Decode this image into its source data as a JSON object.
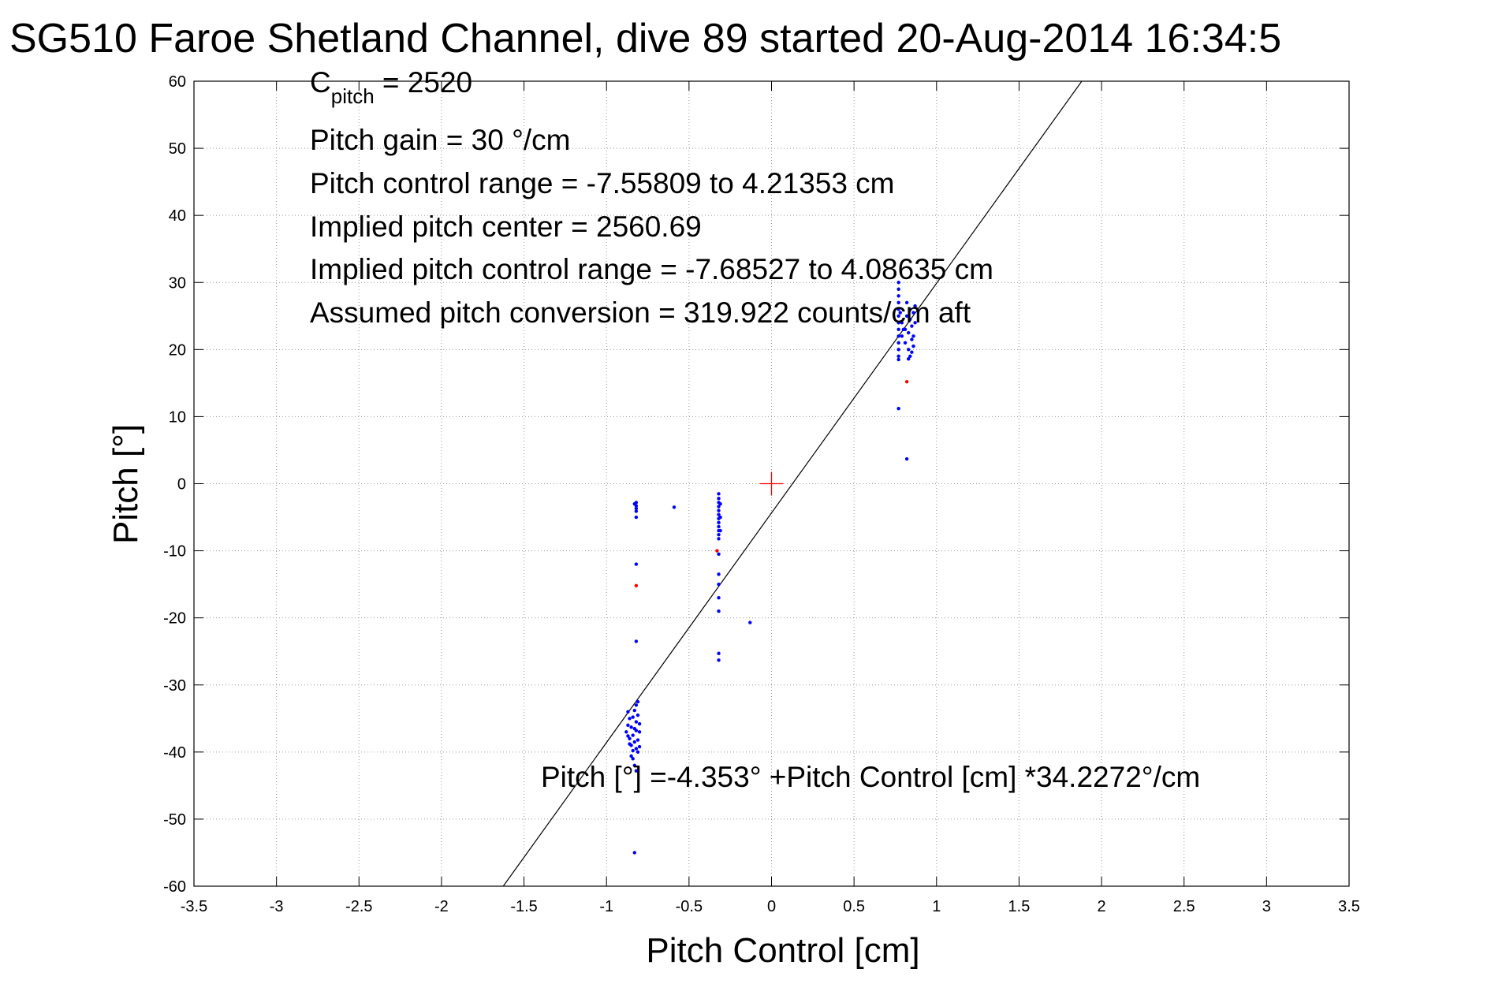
{
  "chart_data": {
    "type": "scatter",
    "title": "SG510 Faroe Shetland Channel, dive 89 started 20-Aug-2014 16:34:5",
    "xlabel": "Pitch Control [cm]",
    "ylabel": "Pitch [°]",
    "xlim": [
      -3.5,
      3.5
    ],
    "ylim": [
      -60,
      60
    ],
    "xticks": [
      -3.5,
      -3,
      -2.5,
      -2,
      -1.5,
      -1,
      -0.5,
      0,
      0.5,
      1,
      1.5,
      2,
      2.5,
      3,
      3.5
    ],
    "xtick_labels": [
      "-3.5",
      "-3",
      "-2.5",
      "-2",
      "-1.5",
      "-1",
      "-0.5",
      "0",
      "0.5",
      "1",
      "1.5",
      "2",
      "2.5",
      "3",
      "3.5"
    ],
    "yticks": [
      -60,
      -50,
      -40,
      -30,
      -20,
      -10,
      0,
      10,
      20,
      30,
      40,
      50,
      60
    ],
    "ytick_labels": [
      "-60",
      "-50",
      "-40",
      "-30",
      "-20",
      "-10",
      "0",
      "10",
      "20",
      "30",
      "40",
      "50",
      "60"
    ],
    "grid": true,
    "annotations": {
      "c_pitch_main": "C",
      "c_pitch_sub": "pitch",
      "c_pitch_value": " = 2520",
      "pitch_gain": "Pitch gain = 30 °/cm",
      "control_range": "Pitch control range = -7.55809 to 4.21353 cm",
      "implied_center": "Implied pitch center = 2560.69",
      "implied_range": "Implied pitch control range = -7.68527 to 4.08635 cm",
      "conversion": "Assumed pitch conversion = 319.922 counts/cm aft",
      "fit_equation": "Pitch [°] =-4.353° +Pitch Control [cm] *34.2272°/cm"
    },
    "fit_line": {
      "intercept": -4.353,
      "slope": 34.2272,
      "color": "#000000"
    },
    "center_marker": {
      "x": 0,
      "y": 0,
      "color": "#ff0000"
    },
    "series": [
      {
        "color": "#0000ff",
        "points": [
          [
            -0.82,
            -2.8
          ],
          [
            -0.82,
            -3.3
          ],
          [
            -0.82,
            -3.7
          ],
          [
            -0.82,
            -4.1
          ],
          [
            -0.82,
            -5.0
          ],
          [
            -0.83,
            -3.0
          ],
          [
            -0.82,
            -12.0
          ],
          [
            -0.82,
            -23.5
          ],
          [
            -0.83,
            -55.0
          ],
          [
            -0.59,
            -3.5
          ],
          [
            -0.32,
            -1.5
          ],
          [
            -0.32,
            -2.2
          ],
          [
            -0.32,
            -2.8
          ],
          [
            -0.32,
            -3.4
          ],
          [
            -0.32,
            -4.0
          ],
          [
            -0.32,
            -4.6
          ],
          [
            -0.32,
            -5.2
          ],
          [
            -0.32,
            -5.8
          ],
          [
            -0.32,
            -6.4
          ],
          [
            -0.32,
            -7.0
          ],
          [
            -0.32,
            -7.6
          ],
          [
            -0.32,
            -8.2
          ],
          [
            -0.31,
            -3.0
          ],
          [
            -0.31,
            -5.0
          ],
          [
            -0.31,
            -7.0
          ],
          [
            -0.32,
            -10.5
          ],
          [
            -0.32,
            -13.5
          ],
          [
            -0.32,
            -15.0
          ],
          [
            -0.32,
            -17.0
          ],
          [
            -0.32,
            -19.0
          ],
          [
            -0.32,
            -25.3
          ],
          [
            -0.32,
            -26.3
          ],
          [
            -0.13,
            -20.7
          ],
          [
            -0.87,
            -34.0
          ],
          [
            -0.86,
            -35.0
          ],
          [
            -0.87,
            -36.0
          ],
          [
            -0.88,
            -37.0
          ],
          [
            -0.86,
            -38.0
          ],
          [
            -0.85,
            -39.0
          ],
          [
            -0.84,
            -37.5
          ],
          [
            -0.83,
            -36.5
          ],
          [
            -0.82,
            -35.5
          ],
          [
            -0.81,
            -34.5
          ],
          [
            -0.82,
            -33.0
          ],
          [
            -0.81,
            -32.5
          ],
          [
            -0.83,
            -38.5
          ],
          [
            -0.82,
            -39.5
          ],
          [
            -0.81,
            -40.0
          ],
          [
            -0.84,
            -41.0
          ],
          [
            -0.83,
            -42.0
          ],
          [
            -0.82,
            -42.8
          ],
          [
            -0.8,
            -37.0
          ],
          [
            -0.8,
            -35.8
          ],
          [
            -0.85,
            -36.3
          ],
          [
            -0.87,
            -37.6
          ],
          [
            -0.86,
            -38.8
          ],
          [
            -0.84,
            -34.8
          ],
          [
            -0.83,
            -33.8
          ],
          [
            -0.81,
            -38.2
          ],
          [
            -0.8,
            -39.2
          ],
          [
            -0.82,
            -36.8
          ],
          [
            -0.84,
            -39.8
          ],
          [
            -0.85,
            -40.6
          ],
          [
            0.77,
            30.0
          ],
          [
            0.77,
            29.0
          ],
          [
            0.77,
            28.0
          ],
          [
            0.77,
            27.0
          ],
          [
            0.77,
            26.0
          ],
          [
            0.77,
            25.0
          ],
          [
            0.77,
            24.0
          ],
          [
            0.77,
            23.0
          ],
          [
            0.77,
            22.0
          ],
          [
            0.77,
            21.0
          ],
          [
            0.77,
            20.0
          ],
          [
            0.77,
            19.0
          ],
          [
            0.77,
            18.5
          ],
          [
            0.79,
            22.0
          ],
          [
            0.79,
            24.0
          ],
          [
            0.81,
            21.0
          ],
          [
            0.81,
            23.0
          ],
          [
            0.82,
            25.0
          ],
          [
            0.83,
            20.0
          ],
          [
            0.83,
            22.5
          ],
          [
            0.84,
            24.5
          ],
          [
            0.84,
            19.0
          ],
          [
            0.84,
            26.0
          ],
          [
            0.85,
            23.5
          ],
          [
            0.85,
            21.5
          ],
          [
            0.86,
            25.5
          ],
          [
            0.86,
            22.0
          ],
          [
            0.87,
            24.0
          ],
          [
            0.87,
            26.5
          ],
          [
            0.86,
            20.5
          ],
          [
            0.83,
            18.6
          ],
          [
            0.82,
            27.0
          ],
          [
            0.8,
            23.0
          ],
          [
            0.78,
            25.5
          ],
          [
            0.85,
            19.6
          ],
          [
            0.77,
            11.2
          ],
          [
            0.82,
            3.7
          ]
        ]
      },
      {
        "color": "#ff0000",
        "points": [
          [
            -0.82,
            -15.2
          ],
          [
            0.82,
            15.2
          ],
          [
            -0.33,
            -10.0
          ]
        ]
      }
    ]
  }
}
